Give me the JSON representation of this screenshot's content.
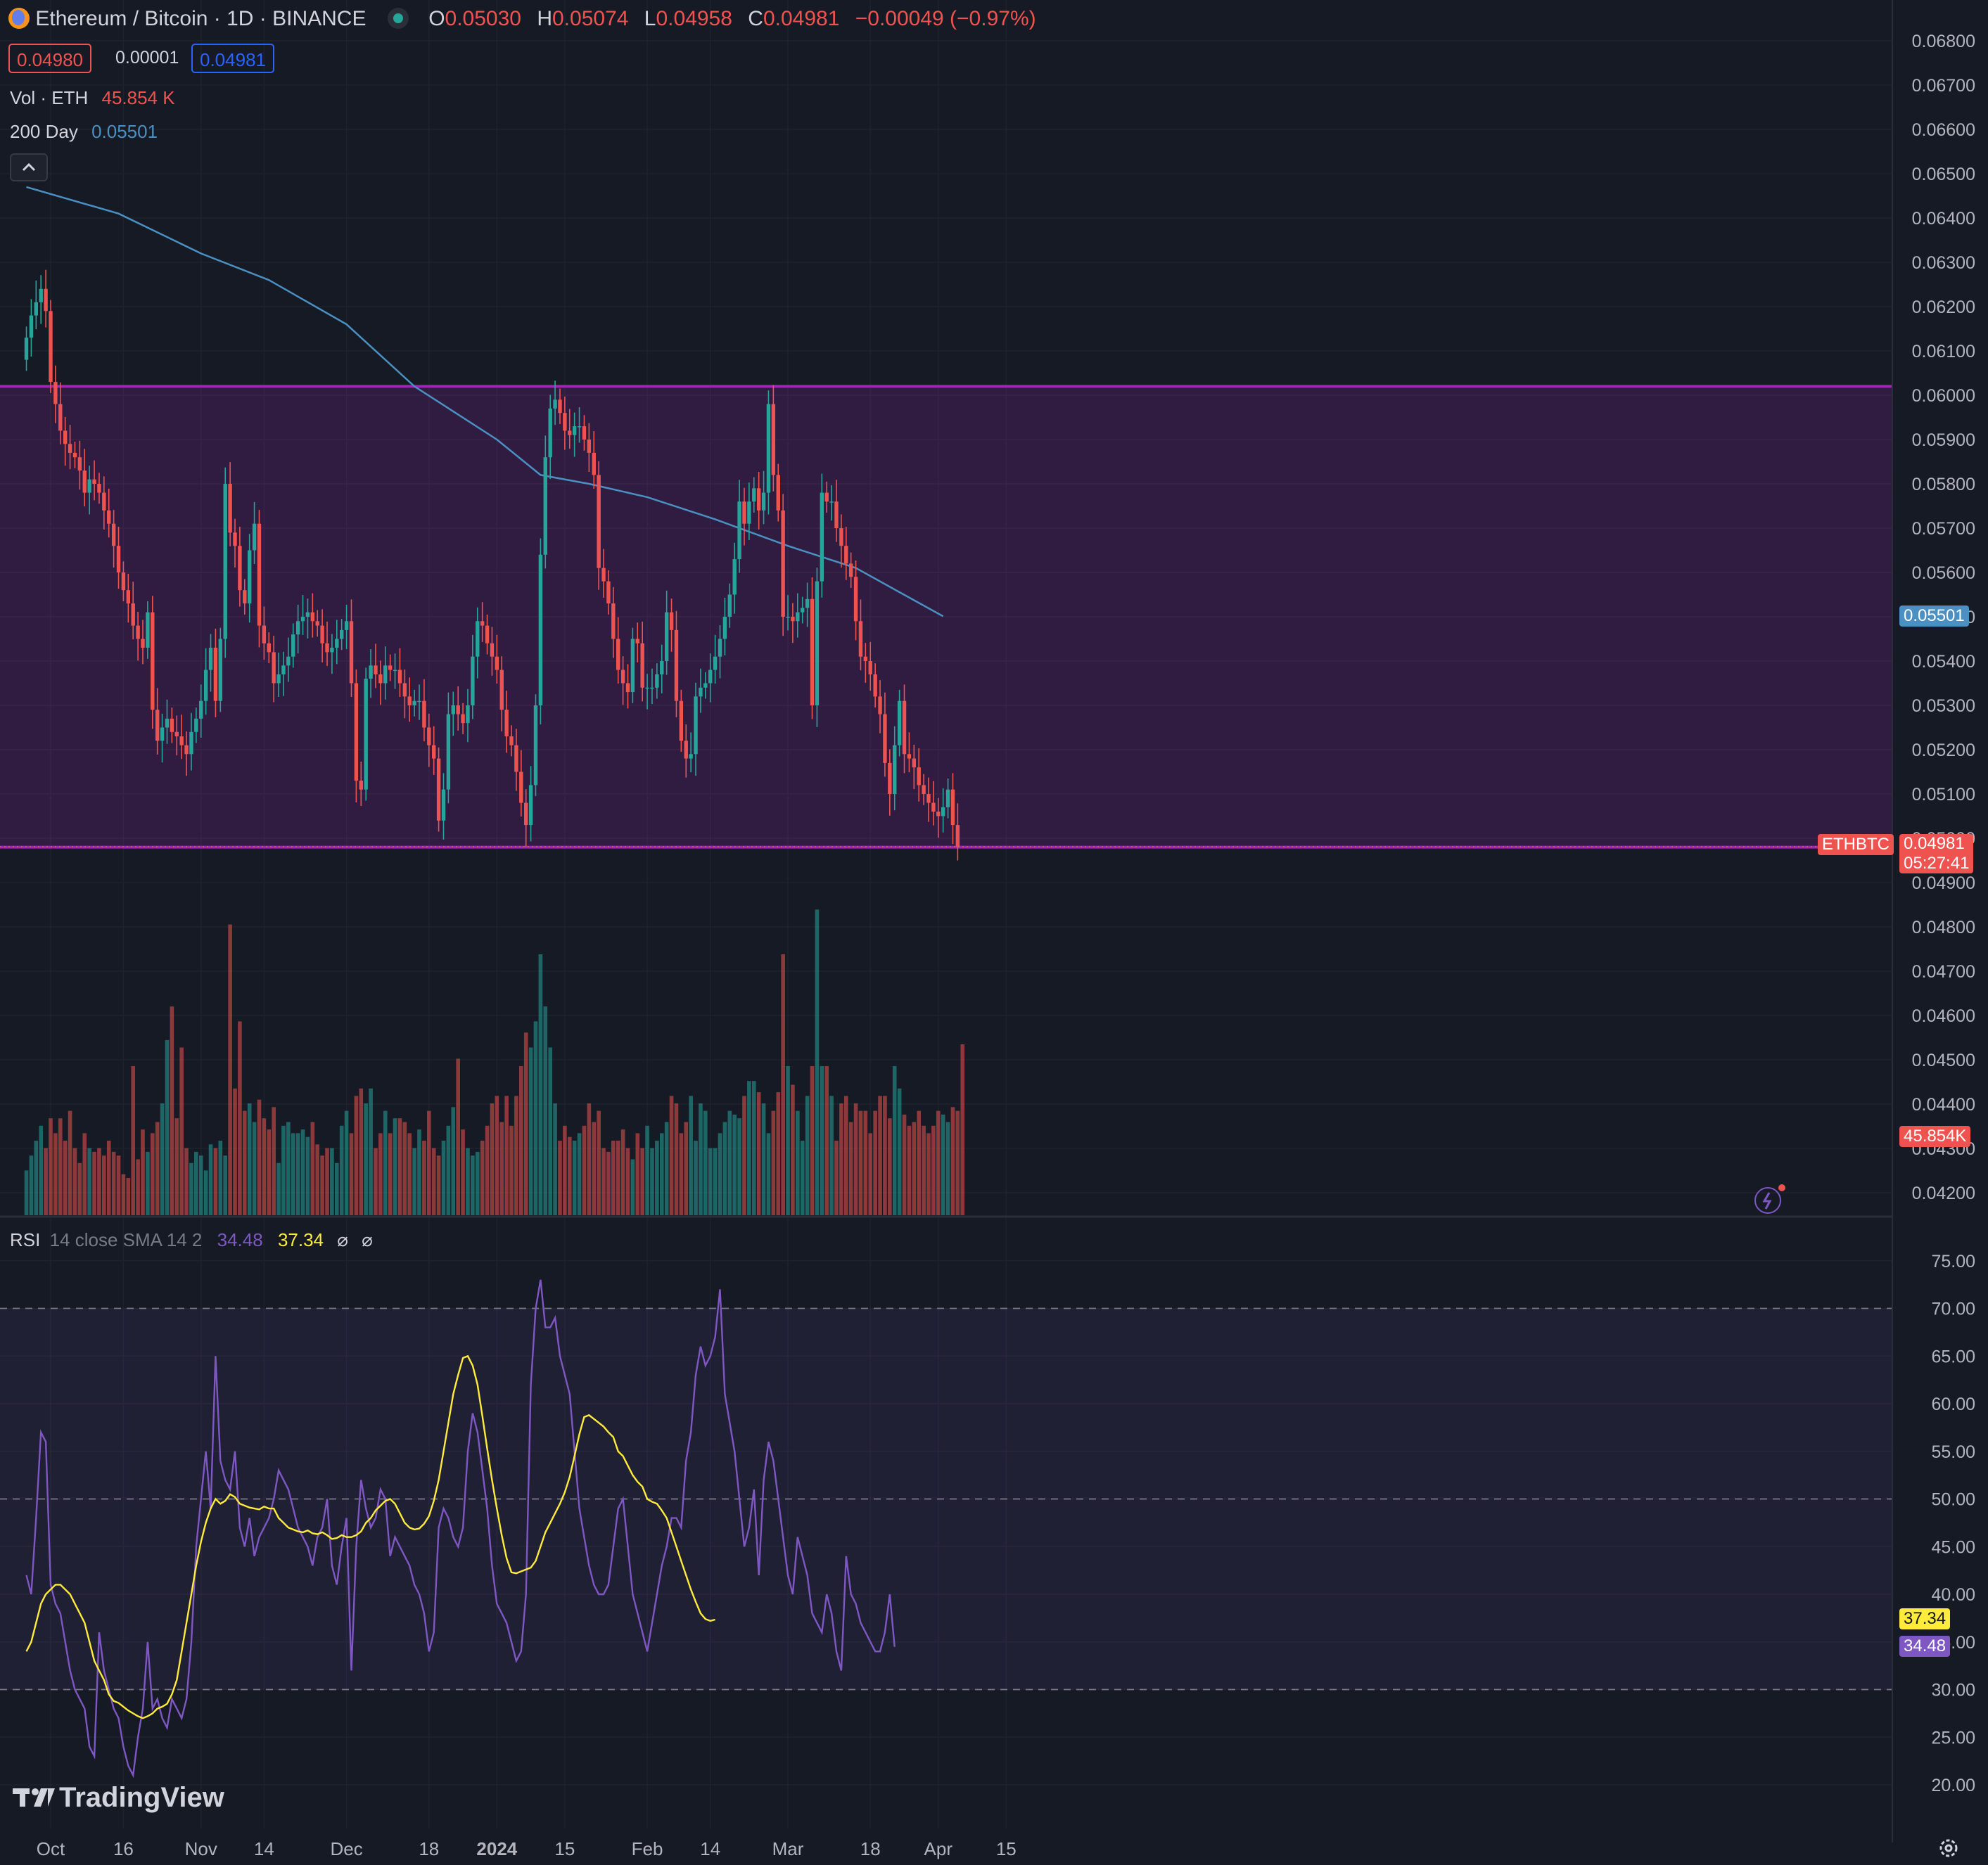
{
  "header": {
    "symbol_title": "Ethereum / Bitcoin · 1D · BINANCE",
    "o_label": "O",
    "o_value": "0.05030",
    "h_label": "H",
    "h_value": "0.05074",
    "l_label": "L",
    "l_value": "0.04958",
    "c_label": "C",
    "c_value": "0.04981",
    "change": "−0.00049 (−0.97%)",
    "bid": "0.04980",
    "spread": "0.00001",
    "ask": "0.04981",
    "vol_label": "Vol · ETH",
    "vol_value": "45.854 K",
    "ma_label": "200 Day",
    "ma_value": "0.05501",
    "collapse_icon": "chevron-up-icon"
  },
  "rsi_header": {
    "label": "RSI",
    "params": "14 close SMA 14 2",
    "rsi_value": "34.48",
    "sma_value": "37.34",
    "icon1": "⌀",
    "icon2": "⌀"
  },
  "tags": {
    "symbol": "ETHBTC",
    "last_price": "0.04981",
    "countdown": "05:27:41",
    "ma_price": "0.05501",
    "volume": "45.854K",
    "rsi_sma": "37.34",
    "rsi": "34.48"
  },
  "logo": "TradingView",
  "colors": {
    "up": "#26a69a",
    "down": "#ef5350",
    "ma": "#4a90c2",
    "rsi": "#7e57c2",
    "rsi_sma": "#ffeb3b",
    "range_box": "#9c27b0"
  },
  "chart_data": [
    {
      "type": "candlestick",
      "title": "Ethereum / Bitcoin",
      "y_ticks": [
        "0.04200",
        "0.04300",
        "0.04400",
        "0.04500",
        "0.04600",
        "0.04700",
        "0.04800",
        "0.04900",
        "0.05000",
        "0.05100",
        "0.05200",
        "0.05300",
        "0.05400",
        "0.05500",
        "0.05600",
        "0.05700",
        "0.05800",
        "0.05900",
        "0.06000",
        "0.06100",
        "0.06200",
        "0.06300",
        "0.06400",
        "0.06500",
        "0.06600",
        "0.06700",
        "0.06800"
      ],
      "x_ticks": [
        "Oct",
        "16",
        "Nov",
        "14",
        "Dec",
        "18",
        "2024",
        "15",
        "Feb",
        "14",
        "Mar",
        "18",
        "Apr",
        "15"
      ],
      "x_tick_dates": [
        "2023-10-01",
        "2023-10-16",
        "2023-11-01",
        "2023-11-14",
        "2023-12-01",
        "2023-12-18",
        "2024-01-01",
        "2024-01-15",
        "2024-02-01",
        "2024-02-14",
        "2024-03-01",
        "2024-03-18",
        "2024-04-01",
        "2024-04-15"
      ],
      "range_box": {
        "top": 0.0602,
        "bottom": 0.0498
      },
      "ma_200": {
        "x": [
          "2023-09-26",
          "2023-10-15",
          "2023-11-01",
          "2023-11-15",
          "2023-12-01",
          "2023-12-15",
          "2024-01-01",
          "2024-01-10",
          "2024-01-20",
          "2024-02-01",
          "2024-02-15",
          "2024-03-01",
          "2024-03-15",
          "2024-04-02"
        ],
        "y": [
          0.0647,
          0.0641,
          0.0632,
          0.0626,
          0.0616,
          0.0602,
          0.059,
          0.0582,
          0.058,
          0.0577,
          0.0572,
          0.0566,
          0.0561,
          0.05501
        ]
      },
      "close_series": {
        "start": "2023-09-26",
        "values": [
          0.0613,
          0.0618,
          0.0621,
          0.0624,
          0.0619,
          0.0603,
          0.0598,
          0.0592,
          0.0589,
          0.0587,
          0.0586,
          0.0583,
          0.0578,
          0.0581,
          0.058,
          0.0578,
          0.0574,
          0.0571,
          0.0566,
          0.056,
          0.0556,
          0.0553,
          0.0548,
          0.0545,
          0.0543,
          0.0551,
          0.0529,
          0.0522,
          0.0525,
          0.0527,
          0.0524,
          0.0523,
          0.0521,
          0.0519,
          0.0524,
          0.0527,
          0.0531,
          0.0538,
          0.0543,
          0.0531,
          0.0545,
          0.058,
          0.0569,
          0.0566,
          0.0556,
          0.0553,
          0.0565,
          0.0571,
          0.0548,
          0.0544,
          0.0542,
          0.0535,
          0.0537,
          0.0539,
          0.0541,
          0.0546,
          0.0549,
          0.055,
          0.0551,
          0.0549,
          0.0548,
          0.0544,
          0.0542,
          0.0543,
          0.0545,
          0.0547,
          0.0549,
          0.0535,
          0.0513,
          0.0511,
          0.0536,
          0.0539,
          0.0537,
          0.0535,
          0.0539,
          0.0538,
          0.0538,
          0.0535,
          0.0532,
          0.053,
          0.0531,
          0.0531,
          0.0525,
          0.0521,
          0.0518,
          0.0504,
          0.0511,
          0.0528,
          0.053,
          0.0528,
          0.0526,
          0.053,
          0.0541,
          0.0549,
          0.0548,
          0.0544,
          0.0541,
          0.0538,
          0.0529,
          0.0523,
          0.0521,
          0.0515,
          0.0508,
          0.0503,
          0.0512,
          0.053,
          0.0564,
          0.0586,
          0.0597,
          0.0599,
          0.0596,
          0.0592,
          0.0591,
          0.0593,
          0.0593,
          0.059,
          0.0587,
          0.0582,
          0.0561,
          0.0558,
          0.0553,
          0.0545,
          0.0538,
          0.0535,
          0.0533,
          0.0545,
          0.0544,
          0.0534,
          0.0534,
          0.0534,
          0.0537,
          0.054,
          0.0551,
          0.0547,
          0.0531,
          0.0522,
          0.0518,
          0.0519,
          0.0532,
          0.0534,
          0.0535,
          0.0538,
          0.0541,
          0.0545,
          0.055,
          0.0555,
          0.0563,
          0.0576,
          0.0571,
          0.0576,
          0.0579,
          0.0574,
          0.0578,
          0.0598,
          0.0582,
          0.0574,
          0.055,
          0.055,
          0.0549,
          0.0551,
          0.0552,
          0.0554,
          0.053,
          0.0558,
          0.0578,
          0.0576,
          0.0576,
          0.057,
          0.0566,
          0.0562,
          0.0559,
          0.0549,
          0.0541,
          0.054,
          0.0537,
          0.0532,
          0.0528,
          0.0517,
          0.051,
          0.0521,
          0.0531,
          0.0519,
          0.0518,
          0.0516,
          0.0512,
          0.051,
          0.0508,
          0.0506,
          0.0505,
          0.0507,
          0.0511,
          0.0503,
          0.04981
        ]
      },
      "volume_k": [
        12,
        16,
        20,
        24,
        18,
        26,
        22,
        26,
        20,
        28,
        18,
        14,
        22,
        18,
        17,
        18,
        16,
        20,
        17,
        16,
        11,
        10,
        40,
        15,
        23,
        17,
        22,
        25,
        30,
        47,
        56,
        26,
        45,
        18,
        14,
        17,
        16,
        12,
        19,
        18,
        20,
        16,
        78,
        34,
        52,
        28,
        30,
        25,
        31,
        26,
        23,
        29,
        14,
        24,
        25,
        22,
        22,
        23,
        21,
        25,
        19,
        16,
        18,
        18,
        14,
        24,
        28,
        22,
        32,
        34,
        30,
        34,
        18,
        22,
        28,
        22,
        26,
        26,
        25,
        22,
        18,
        23,
        20,
        28,
        18,
        16,
        20,
        24,
        29,
        42,
        23,
        18,
        16,
        17,
        20,
        24,
        30,
        32,
        25,
        32,
        24,
        32,
        40,
        49,
        45,
        52,
        70,
        56,
        45,
        30,
        20,
        24,
        21,
        20,
        22,
        24,
        30,
        25,
        28,
        18,
        17,
        20,
        20,
        23,
        18,
        15,
        22,
        18,
        24,
        18,
        20,
        22,
        25,
        32,
        30,
        22,
        25,
        32,
        20,
        30,
        28,
        18,
        18,
        22,
        25,
        28,
        27,
        26,
        32,
        36,
        36,
        33,
        30,
        22,
        28,
        33,
        70,
        40,
        35,
        28,
        20,
        32,
        40,
        82,
        40,
        40,
        32,
        20,
        30,
        32,
        25,
        30,
        28,
        28,
        22,
        28,
        32,
        32,
        26,
        40,
        34,
        27,
        24,
        25,
        28,
        24,
        22,
        24,
        28,
        27,
        25,
        29,
        28,
        45.854
      ]
    },
    {
      "type": "line",
      "title": "RSI",
      "y_ticks": [
        "20.00",
        "25.00",
        "30.00",
        "35.00",
        "40.00",
        "45.00",
        "50.00",
        "55.00",
        "60.00",
        "65.00",
        "70.00",
        "75.00"
      ],
      "bands": [
        30,
        50,
        70
      ],
      "series": [
        {
          "name": "RSI",
          "start": "2023-09-26",
          "values": [
            42,
            40,
            48,
            57,
            56,
            41,
            39,
            38,
            35,
            32,
            30,
            29,
            28,
            24,
            23,
            36,
            32,
            30,
            28,
            27,
            24,
            22,
            21,
            25,
            28,
            35,
            28,
            29,
            27,
            26,
            29,
            28,
            27,
            29,
            35,
            45,
            50,
            55,
            49,
            65,
            54,
            52,
            51,
            55,
            47,
            45,
            48,
            44,
            46,
            47,
            48,
            50,
            53,
            52,
            51,
            49,
            47,
            46,
            45,
            43,
            46,
            47,
            50,
            43,
            41,
            45,
            48,
            32,
            45,
            52,
            49,
            47,
            48,
            51,
            50,
            44,
            46,
            45,
            44,
            43,
            41,
            40,
            38,
            34,
            36,
            47,
            49,
            48,
            46,
            45,
            47,
            55,
            59,
            57,
            53,
            49,
            43,
            39,
            38,
            37,
            35,
            33,
            34,
            40,
            62,
            70,
            73,
            68,
            68,
            69,
            65,
            63,
            61,
            55,
            49,
            46,
            43,
            41,
            40,
            40,
            41,
            45,
            49,
            50,
            45,
            40,
            38,
            36,
            34,
            37,
            40,
            43,
            45,
            48,
            48,
            47,
            54,
            57,
            63,
            66,
            64,
            65,
            67,
            72,
            61,
            58,
            55,
            50,
            45,
            47,
            51,
            42,
            52,
            56,
            54,
            50,
            46,
            42,
            40,
            46,
            44,
            42,
            38,
            37,
            36,
            40,
            38,
            34,
            32,
            44,
            40,
            39,
            37,
            36,
            35,
            34,
            34,
            36,
            40,
            34.48
          ]
        },
        {
          "name": "SMA",
          "start": "2023-09-26",
          "values": [
            34,
            35,
            37,
            39,
            40,
            40.5,
            41,
            41,
            40.5,
            40,
            39,
            38,
            37,
            35,
            33,
            32,
            31,
            29.5,
            28.8,
            28.6,
            28.2,
            27.8,
            27.5,
            27.2,
            27,
            27.2,
            27.5,
            28,
            28.2,
            28.5,
            29.5,
            31,
            34,
            37,
            40,
            43,
            45.5,
            47.5,
            49,
            50,
            49.5,
            49.8,
            50.5,
            50.2,
            49.5,
            49.3,
            49.1,
            49,
            48.9,
            49.2,
            49,
            49,
            48,
            47.5,
            47,
            46.8,
            46.6,
            46.5,
            46.7,
            46.4,
            46.3,
            46.5,
            46.2,
            45.8,
            45.9,
            46.2,
            46,
            46,
            46.2,
            46.6,
            47.5,
            48,
            48.8,
            49.3,
            49.8,
            50,
            49.5,
            48.5,
            47.5,
            47,
            46.8,
            46.9,
            47.4,
            48.2,
            49.8,
            52,
            55,
            58,
            61,
            63,
            64.8,
            65,
            64,
            62,
            58.7,
            55.3,
            52,
            49,
            46.2,
            43.8,
            42.3,
            42.2,
            42.4,
            42.6,
            42.8,
            43.5,
            45,
            46.5,
            47.5,
            48.5,
            49.5,
            50.7,
            52.3,
            54.5,
            56.8,
            58.6,
            58.8,
            58.4,
            58,
            57.6,
            57,
            56.5,
            55,
            54.5,
            53.5,
            52.5,
            51.8,
            51.3,
            50,
            49.7,
            49.5,
            48.8,
            48,
            46.5,
            45,
            43.5,
            42,
            40.5,
            39.2,
            38,
            37.4,
            37.2,
            37.34
          ]
        }
      ]
    }
  ]
}
